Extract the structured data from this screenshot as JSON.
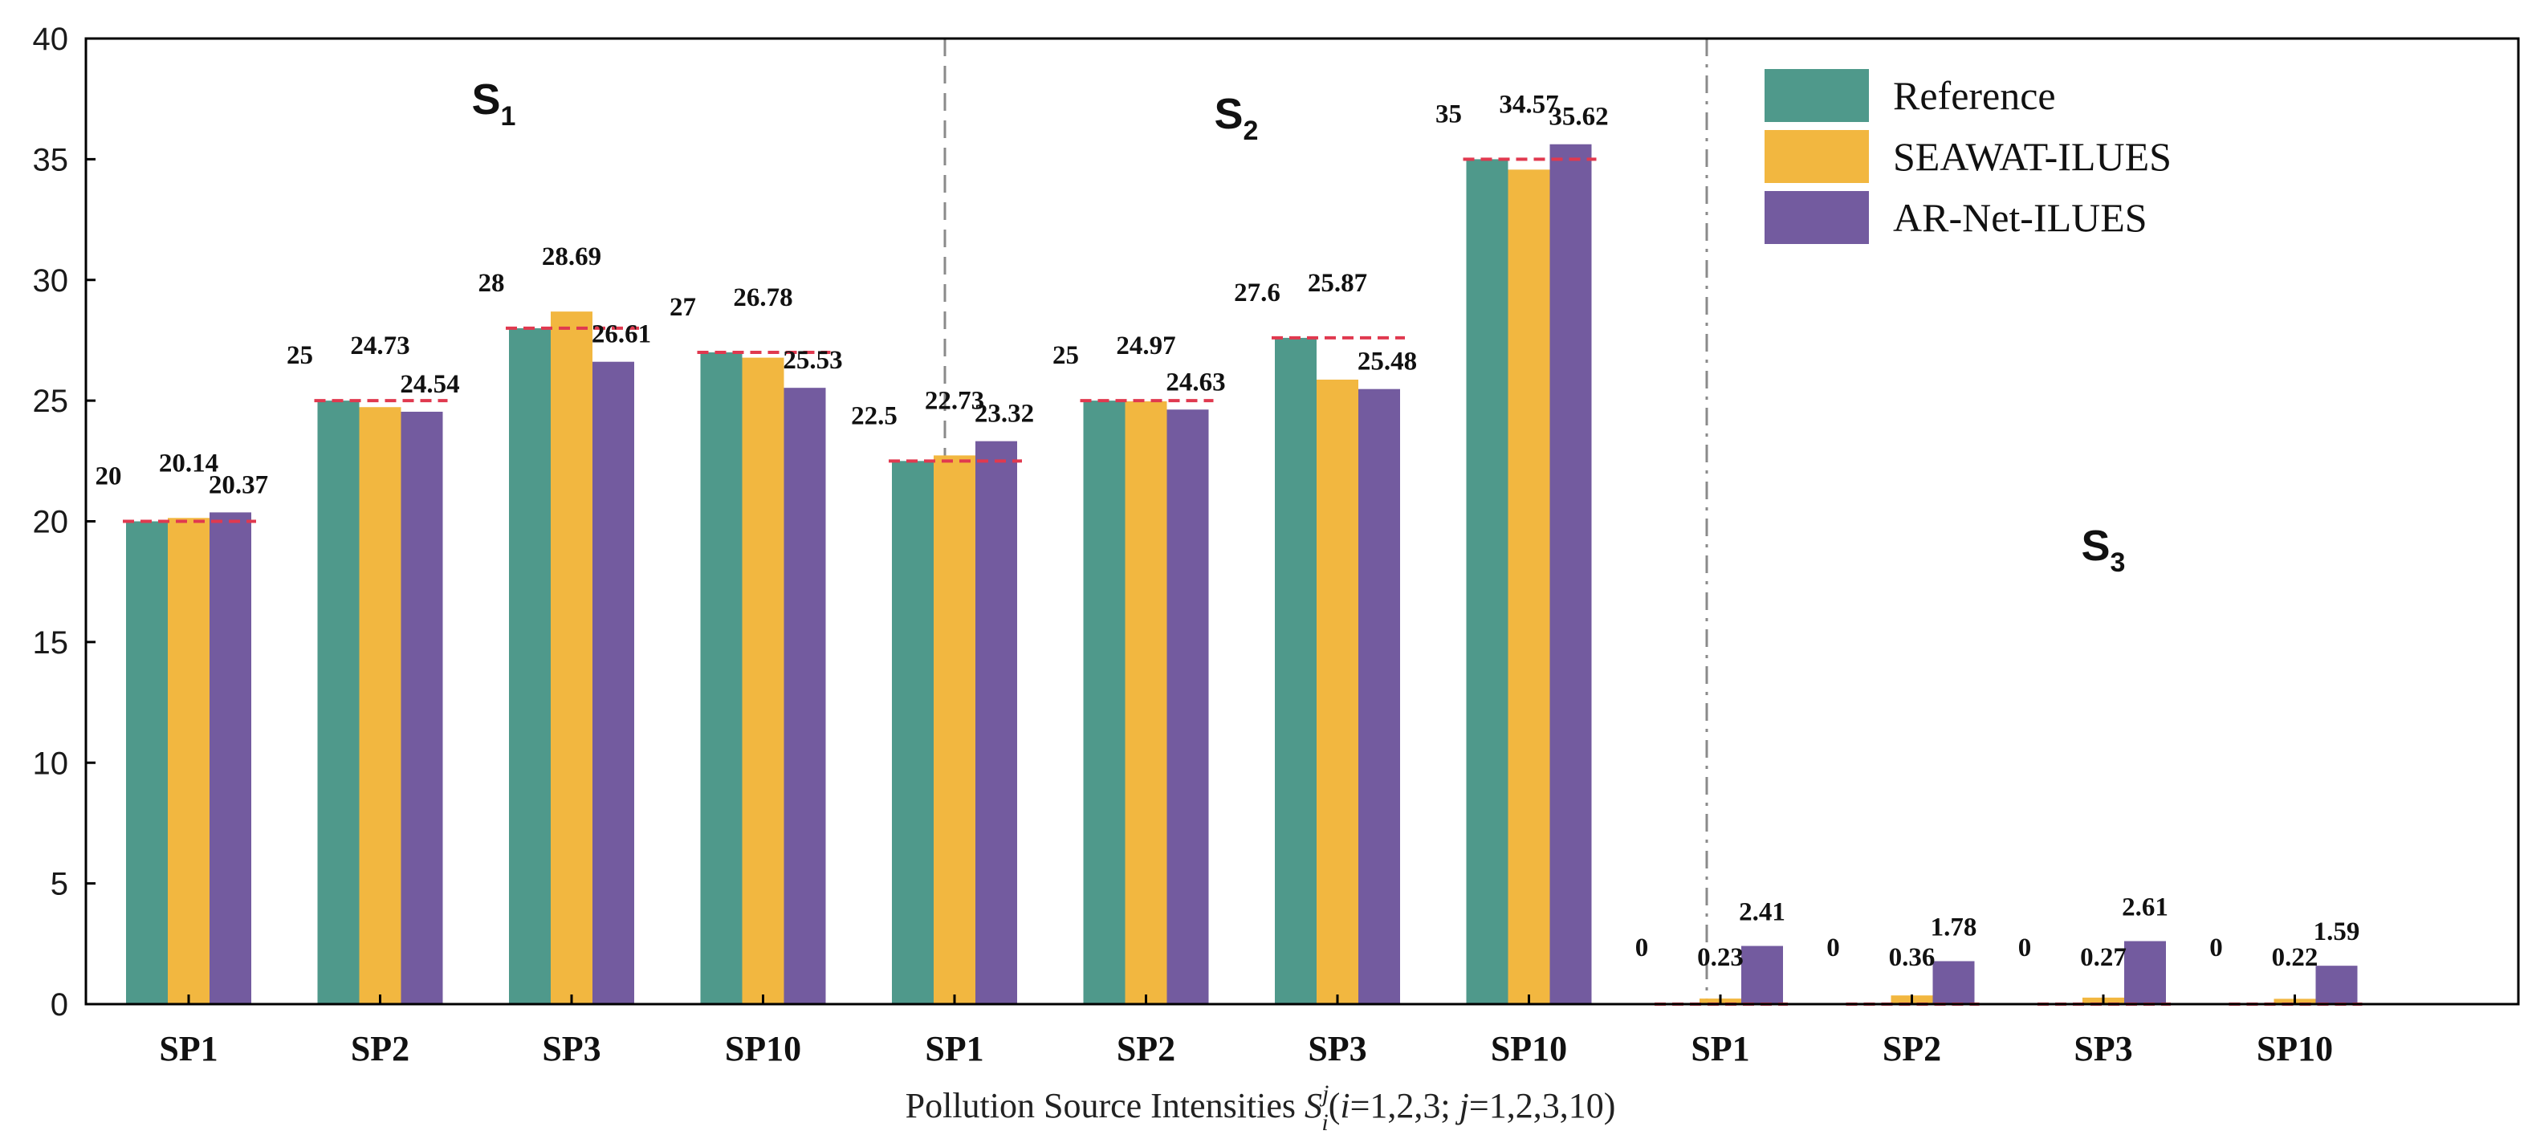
{
  "colors": {
    "reference": "#4f998b",
    "seawat": "#f2b740",
    "arnet": "#735b9f",
    "ref_line": "#e0394f",
    "axis": "#000000",
    "divider": "#8a8a8a"
  },
  "chart_data": {
    "type": "bar",
    "ylim": [
      0,
      40
    ],
    "yticks": [
      "0",
      "5",
      "10",
      "15",
      "20",
      "25",
      "30",
      "35",
      "40"
    ],
    "xlabel": {
      "prefix": "Pollution Source Intensities ",
      "symbol": "S",
      "sup": "j",
      "sub": "i",
      "suffix_open": "(",
      "i_var": "i",
      "i_range": "=1,2,3; ",
      "j_var": "j",
      "j_range": "=1,2,3,10)"
    },
    "legend": [
      {
        "key": "reference",
        "label": "Reference"
      },
      {
        "key": "seawat",
        "label": "SEAWAT-ILUES"
      },
      {
        "key": "arnet",
        "label": "AR-Net-ILUES"
      }
    ],
    "groups": [
      {
        "name": "S",
        "sub": "1",
        "categories": [
          {
            "label": "SP1",
            "values": [
              20,
              20.14,
              20.37
            ],
            "labels": [
              "20",
              "20.14",
              "20.37"
            ]
          },
          {
            "label": "SP2",
            "values": [
              25,
              24.73,
              24.54
            ],
            "labels": [
              "25",
              "24.73",
              "24.54"
            ]
          },
          {
            "label": "SP3",
            "values": [
              28,
              28.69,
              26.61
            ],
            "labels": [
              "28",
              "28.69",
              "26.61"
            ]
          },
          {
            "label": "SP10",
            "values": [
              27,
              26.78,
              25.53
            ],
            "labels": [
              "27",
              "26.78",
              "25.53"
            ]
          }
        ]
      },
      {
        "name": "S",
        "sub": "2",
        "categories": [
          {
            "label": "SP1",
            "values": [
              22.5,
              22.73,
              23.32
            ],
            "labels": [
              "22.5",
              "22.73",
              "23.32"
            ]
          },
          {
            "label": "SP2",
            "values": [
              25,
              24.97,
              24.63
            ],
            "labels": [
              "25",
              "24.97",
              "24.63"
            ]
          },
          {
            "label": "SP3",
            "values": [
              27.6,
              25.87,
              25.48
            ],
            "labels": [
              "27.6",
              "25.87",
              "25.48"
            ]
          },
          {
            "label": "SP10",
            "values": [
              35,
              34.57,
              35.62
            ],
            "labels": [
              "35",
              "34.57",
              "35.62"
            ]
          }
        ]
      },
      {
        "name": "S",
        "sub": "3",
        "categories": [
          {
            "label": "SP1",
            "values": [
              0,
              0.23,
              2.41
            ],
            "labels": [
              "0",
              "0.23",
              "2.41"
            ]
          },
          {
            "label": "SP2",
            "values": [
              0,
              0.36,
              1.78
            ],
            "labels": [
              "0",
              "0.36",
              "1.78"
            ]
          },
          {
            "label": "SP3",
            "values": [
              0,
              0.27,
              2.61
            ],
            "labels": [
              "0",
              "0.27",
              "2.61"
            ]
          },
          {
            "label": "SP10",
            "values": [
              0,
              0.22,
              1.59
            ],
            "labels": [
              "0",
              "0.22",
              "1.59"
            ]
          }
        ]
      }
    ]
  }
}
